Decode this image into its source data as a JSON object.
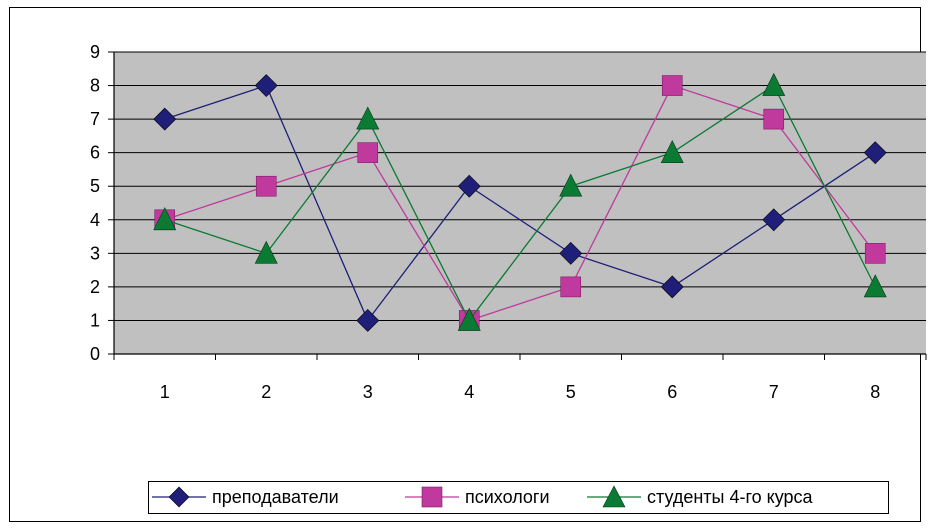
{
  "chart_data": {
    "type": "line",
    "title": "",
    "xlabel": "",
    "ylabel": "",
    "categories": [
      "1",
      "2",
      "3",
      "4",
      "5",
      "6",
      "7",
      "8"
    ],
    "ylim": [
      0,
      9
    ],
    "yticks": [
      "0",
      "1",
      "2",
      "3",
      "4",
      "5",
      "6",
      "7",
      "8",
      "9"
    ],
    "grid": true,
    "legend_position": "bottom",
    "plot_background": "#c0c0c0",
    "series": [
      {
        "name": "преподаватели",
        "values": [
          7,
          8,
          1,
          5,
          3,
          2,
          4,
          6
        ],
        "color": "#1f1f7a",
        "marker": "diamond"
      },
      {
        "name": "психологи",
        "values": [
          4,
          5,
          6,
          1,
          2,
          8,
          7,
          3
        ],
        "color": "#c0399c",
        "marker": "square"
      },
      {
        "name": "студенты 4-го курса",
        "values": [
          4,
          3,
          7,
          1,
          5,
          6,
          8,
          2
        ],
        "color": "#0b7a33",
        "marker": "triangle"
      }
    ]
  }
}
